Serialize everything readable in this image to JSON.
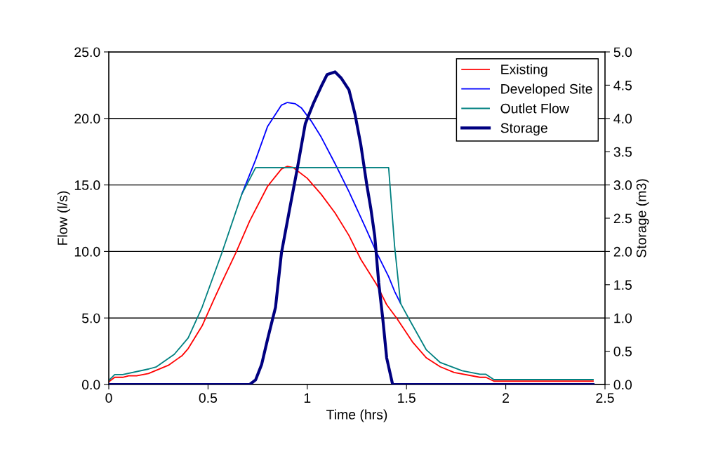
{
  "chart_data": {
    "type": "line",
    "xlabel": "Time (hrs)",
    "ylabel": "Flow (l/s)",
    "y2label": "Storage (m3)",
    "xlim": [
      0,
      2.5
    ],
    "xticks": [
      0,
      0.5,
      1,
      1.5,
      2,
      2.5
    ],
    "ylim": [
      0,
      25
    ],
    "yticks": [
      {
        "value": 0,
        "label": "0.0"
      },
      {
        "value": 5,
        "label": "5.0"
      },
      {
        "value": 10,
        "label": "10.0"
      },
      {
        "value": 15,
        "label": "15.0"
      },
      {
        "value": 20,
        "label": "20.0"
      },
      {
        "value": 25,
        "label": "25.0"
      }
    ],
    "y2lim": [
      0,
      5
    ],
    "y2ticks": [
      {
        "value": 0,
        "label": "0.0"
      },
      {
        "value": 0.5,
        "label": "0.5"
      },
      {
        "value": 1,
        "label": "1.0"
      },
      {
        "value": 1.5,
        "label": "1.5"
      },
      {
        "value": 2,
        "label": "2.0"
      },
      {
        "value": 2.5,
        "label": "2.5"
      },
      {
        "value": 3,
        "label": "3.0"
      },
      {
        "value": 3.5,
        "label": "3.5"
      },
      {
        "value": 4,
        "label": "4.0"
      },
      {
        "value": 4.5,
        "label": "4.5"
      },
      {
        "value": 5,
        "label": "5.0"
      }
    ],
    "grid": "y",
    "legend": "top right",
    "marker": "none",
    "line_style": "solid",
    "series": [
      {
        "name": "Existing",
        "color": "#ff0000",
        "x": [
          0,
          0.03,
          0.07,
          0.1,
          0.14,
          0.2,
          0.3,
          0.37,
          0.4,
          0.47,
          0.53,
          0.57,
          0.64,
          0.71,
          0.8,
          0.87,
          0.9,
          0.93,
          1.0,
          1.07,
          1.14,
          1.21,
          1.27,
          1.35,
          1.4,
          1.45,
          1.53,
          1.6,
          1.67,
          1.74,
          1.87,
          1.9,
          1.94,
          2.44
        ],
        "values": [
          0.2,
          0.54,
          0.54,
          0.65,
          0.65,
          0.82,
          1.44,
          2.18,
          2.7,
          4.4,
          6.4,
          7.7,
          9.9,
          12.3,
          14.9,
          16.2,
          16.4,
          16.3,
          15.5,
          14.3,
          12.9,
          11.2,
          9.4,
          7.5,
          6.0,
          5.0,
          3.2,
          2.0,
          1.33,
          0.9,
          0.54,
          0.54,
          0.25,
          0.25
        ]
      },
      {
        "name": "Developed Site",
        "color": "#0000ff",
        "x": [
          0.67,
          0.74,
          0.8,
          0.87,
          0.9,
          0.94,
          0.97,
          1.02,
          1.07,
          1.14,
          1.21,
          1.29,
          1.35,
          1.41,
          1.44,
          1.47
        ],
        "values": [
          14.3,
          16.9,
          19.4,
          21.0,
          21.2,
          21.1,
          20.8,
          19.8,
          18.6,
          16.6,
          14.5,
          11.9,
          9.9,
          8.1,
          7.0,
          6.1
        ]
      },
      {
        "name": "Outlet Flow",
        "color": "#008080",
        "x": [
          0,
          0.03,
          0.07,
          0.2,
          0.24,
          0.33,
          0.4,
          0.47,
          0.57,
          0.67,
          0.74,
          1.41,
          1.44,
          1.47,
          1.51,
          1.6,
          1.67,
          1.78,
          1.87,
          1.9,
          1.94,
          2.44
        ],
        "values": [
          0.3,
          0.74,
          0.74,
          1.16,
          1.33,
          2.27,
          3.5,
          5.8,
          9.9,
          14.3,
          16.3,
          16.3,
          10.4,
          6.1,
          5.0,
          2.6,
          1.65,
          1.04,
          0.77,
          0.77,
          0.37,
          0.37
        ]
      },
      {
        "name": "Storage",
        "color": "#000080",
        "axis": "y2",
        "x": [
          0,
          0.71,
          0.74,
          0.77,
          0.8,
          0.84,
          0.87,
          0.91,
          0.95,
          0.99,
          1.03,
          1.07,
          1.1,
          1.14,
          1.17,
          1.21,
          1.24,
          1.27,
          1.3,
          1.32,
          1.34,
          1.36,
          1.38,
          1.4,
          1.43,
          2.44
        ],
        "values": [
          0,
          0,
          0.07,
          0.3,
          0.68,
          1.16,
          1.98,
          2.62,
          3.25,
          3.92,
          4.22,
          4.48,
          4.66,
          4.7,
          4.61,
          4.43,
          4.07,
          3.6,
          3.0,
          2.65,
          2.23,
          1.53,
          1.0,
          0.4,
          0,
          0
        ]
      }
    ]
  }
}
